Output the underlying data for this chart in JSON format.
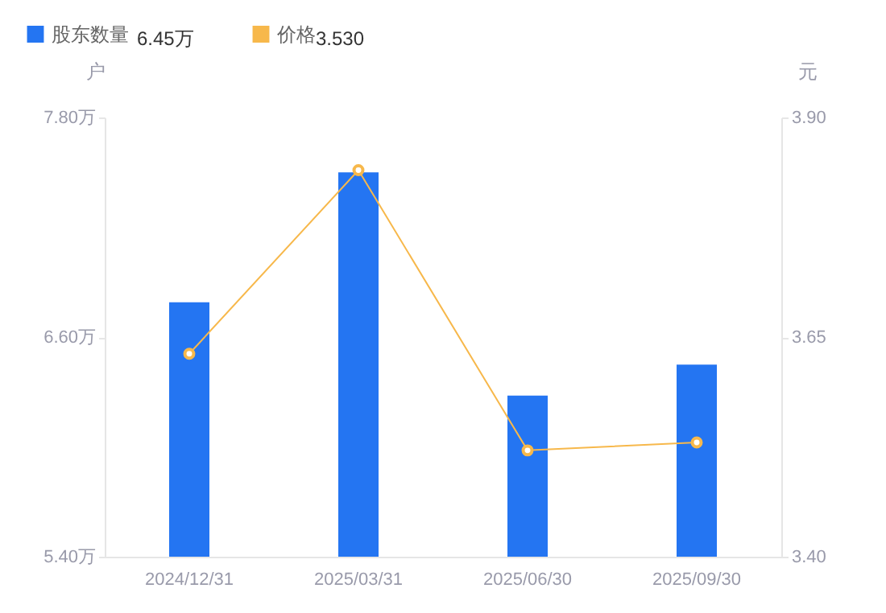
{
  "chart_data": {
    "type": "bar",
    "categories": [
      "2024/12/31",
      "2025/03/31",
      "2025/06/30",
      "2025/09/30"
    ],
    "ylabel": "户",
    "y2label": "元",
    "ylim": [
      5.4,
      7.8
    ],
    "yticks": [
      {
        "value": 5.4,
        "label": "5.40万"
      },
      {
        "value": 6.6,
        "label": "6.60万"
      },
      {
        "value": 7.8,
        "label": "7.80万"
      }
    ],
    "y2lim": [
      3.4,
      3.9
    ],
    "y2ticks": [
      {
        "value": 3.4,
        "label": "3.40"
      },
      {
        "value": 3.65,
        "label": "3.65"
      },
      {
        "value": 3.9,
        "label": "3.90"
      }
    ],
    "series": [
      {
        "name": "股东数量",
        "color": "#2475f2",
        "values": [
          6.79,
          7.5,
          6.28,
          6.45
        ]
      },
      {
        "name": "价格",
        "type": "line",
        "axis": "y2",
        "color": "#f7b84b",
        "values": [
          3.631,
          3.84,
          3.521,
          3.53
        ]
      }
    ],
    "annotations": [
      "6.45万",
      "3.530"
    ],
    "legend": "top left",
    "marker": "circle",
    "grid": false
  }
}
